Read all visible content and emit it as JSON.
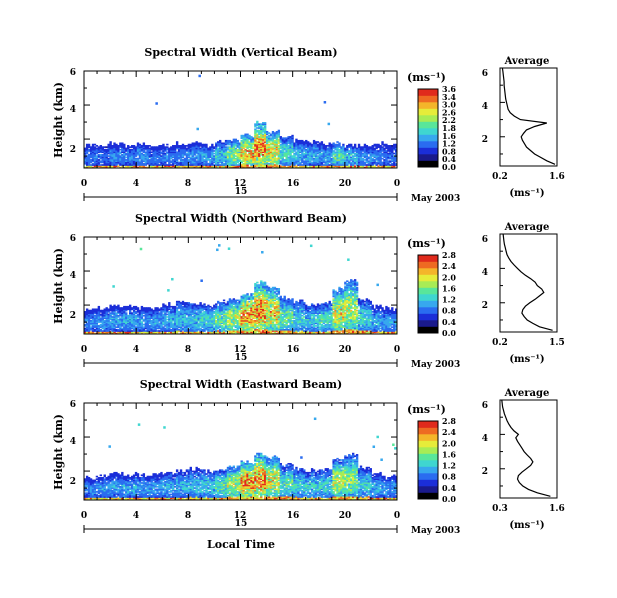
{
  "colors": {
    "colormap": [
      "#000000",
      "#1a1a8c",
      "#1b2ed8",
      "#2a6cf0",
      "#37a8ee",
      "#3fd6d0",
      "#59e69a",
      "#a8ec55",
      "#e6ec3a",
      "#f4b52a",
      "#ee6a22",
      "#e02a1c"
    ]
  },
  "chart_data": [
    {
      "type": "heatmap",
      "title": "Spectral Width (Vertical Beam)",
      "ylabel": "Height (km)",
      "x_ticks": [
        "0",
        "4",
        "8",
        "12",
        "16",
        "20",
        "0"
      ],
      "x_range": [
        0,
        24
      ],
      "y_ticks": [
        "2",
        "4",
        "6"
      ],
      "y_range": [
        0.3,
        6
      ],
      "date_bar_label": "15",
      "date_label": "May 2003",
      "colorbar_unit": "(ms⁻¹)",
      "colorbar_ticks": [
        "3.6",
        "3.4",
        "3.0",
        "2.6",
        "2.2",
        "1.8",
        "1.6",
        "1.2",
        "0.8",
        "0.4",
        "0.0"
      ],
      "colorbar_max": 3.6,
      "boundary_layer_top_km": [
        1.6,
        1.6,
        1.7,
        1.6,
        1.7,
        1.6,
        1.6,
        1.7,
        1.7,
        1.6,
        1.8,
        1.9,
        2.2,
        2.9,
        2.4,
        2.1,
        1.9,
        1.8,
        1.7,
        1.7,
        1.6,
        1.6,
        1.7,
        1.6
      ],
      "peak_width": [
        0.9,
        0.9,
        1.0,
        1.0,
        1.1,
        0.9,
        0.9,
        1.0,
        1.1,
        1.2,
        1.6,
        2.4,
        3.2,
        3.6,
        3.0,
        1.8,
        1.4,
        1.3,
        1.2,
        2.0,
        1.5,
        1.1,
        1.0,
        0.9
      ],
      "average_profile": {
        "title": "Average",
        "xlabel": "(ms⁻¹)",
        "x_ticks": [
          "0.2",
          "1.6"
        ],
        "x_range": [
          0.2,
          1.6
        ],
        "y_range": [
          0.3,
          6
        ],
        "height": [
          0.4,
          0.6,
          0.8,
          1.0,
          1.2,
          1.4,
          1.6,
          1.8,
          2.0,
          2.2,
          2.4,
          2.6,
          2.8,
          3.0,
          3.2,
          3.4,
          3.6,
          3.8,
          4.0,
          4.2,
          4.4,
          4.6,
          4.8,
          5.0,
          5.2,
          5.4,
          5.6,
          5.8,
          6.0
        ],
        "width": [
          1.55,
          1.35,
          1.2,
          1.05,
          0.95,
          0.85,
          0.8,
          0.75,
          0.72,
          0.78,
          0.85,
          1.05,
          1.35,
          0.7,
          0.55,
          0.45,
          0.4,
          0.38,
          0.36,
          0.34,
          0.33,
          0.32,
          0.31,
          0.3,
          0.3,
          0.29,
          0.28,
          0.27,
          0.26
        ]
      }
    },
    {
      "type": "heatmap",
      "title": "Spectral Width (Northward Beam)",
      "ylabel": "Height (km)",
      "x_ticks": [
        "0",
        "4",
        "8",
        "12",
        "16",
        "20",
        "0"
      ],
      "x_range": [
        0,
        24
      ],
      "y_ticks": [
        "2",
        "4",
        "6"
      ],
      "y_range": [
        0.3,
        6
      ],
      "date_bar_label": "15",
      "date_label": "May 2003",
      "colorbar_unit": "(ms⁻¹)",
      "colorbar_ticks": [
        "2.8",
        "2.4",
        "2.0",
        "1.6",
        "1.2",
        "0.8",
        "0.4",
        "0.0"
      ],
      "colorbar_max": 2.8,
      "boundary_layer_top_km": [
        1.7,
        1.8,
        1.9,
        1.9,
        1.8,
        1.8,
        2.0,
        2.1,
        2.1,
        2.0,
        2.2,
        2.3,
        2.6,
        3.3,
        3.1,
        2.4,
        2.2,
        2.0,
        2.1,
        2.9,
        3.4,
        2.3,
        1.9,
        1.8
      ],
      "peak_width": [
        0.8,
        0.9,
        0.9,
        1.0,
        0.9,
        0.9,
        1.0,
        1.1,
        1.2,
        1.3,
        1.6,
        2.0,
        2.8,
        2.8,
        2.4,
        1.6,
        1.3,
        1.2,
        1.4,
        2.2,
        2.0,
        1.3,
        1.0,
        0.9
      ],
      "average_profile": {
        "title": "Average",
        "xlabel": "(ms⁻¹)",
        "x_ticks": [
          "0.2",
          "1.5"
        ],
        "x_range": [
          0.2,
          1.5
        ],
        "y_range": [
          0.3,
          6
        ],
        "height": [
          0.4,
          0.6,
          0.8,
          1.0,
          1.2,
          1.4,
          1.6,
          1.8,
          2.0,
          2.2,
          2.4,
          2.6,
          2.8,
          3.0,
          3.2,
          3.4,
          3.6,
          3.8,
          4.0,
          4.2,
          4.4,
          4.6,
          4.8,
          5.0,
          5.2,
          5.4,
          5.6,
          5.8,
          6.0
        ],
        "width": [
          1.4,
          1.1,
          0.95,
          0.82,
          0.75,
          0.7,
          0.72,
          0.78,
          0.88,
          1.0,
          1.1,
          1.2,
          1.15,
          1.05,
          1.0,
          0.9,
          0.78,
          0.68,
          0.6,
          0.52,
          0.45,
          0.4,
          0.36,
          0.34,
          0.32,
          0.3,
          0.29,
          0.28,
          0.27
        ]
      }
    },
    {
      "type": "heatmap",
      "title": "Spectral Width (Eastward Beam)",
      "ylabel": "Height (km)",
      "xlabel": "Local Time",
      "x_ticks": [
        "0",
        "4",
        "8",
        "12",
        "16",
        "20",
        "0"
      ],
      "x_range": [
        0,
        24
      ],
      "y_ticks": [
        "2",
        "4",
        "6"
      ],
      "y_range": [
        0.3,
        6
      ],
      "date_bar_label": "15",
      "date_label": "May 2003",
      "colorbar_unit": "(ms⁻¹)",
      "colorbar_ticks": [
        "2.8",
        "2.4",
        "2.0",
        "1.6",
        "1.2",
        "0.8",
        "0.4",
        "0.0"
      ],
      "colorbar_max": 2.8,
      "boundary_layer_top_km": [
        1.6,
        1.7,
        1.8,
        1.8,
        1.7,
        1.8,
        1.9,
        2.0,
        2.1,
        2.0,
        2.1,
        2.2,
        2.5,
        3.0,
        2.8,
        2.3,
        2.1,
        2.0,
        2.1,
        2.7,
        2.9,
        2.2,
        1.8,
        1.7
      ],
      "peak_width": [
        0.8,
        0.9,
        0.9,
        1.0,
        0.9,
        0.9,
        1.0,
        1.1,
        1.1,
        1.2,
        1.5,
        2.0,
        2.8,
        2.8,
        2.2,
        1.5,
        1.3,
        1.2,
        1.3,
        2.0,
        1.8,
        1.2,
        1.0,
        0.9
      ],
      "average_profile": {
        "title": "Average",
        "xlabel": "(ms⁻¹)",
        "x_ticks": [
          "0.3",
          "1.6"
        ],
        "x_range": [
          0.3,
          1.6
        ],
        "y_range": [
          0.3,
          6
        ],
        "height": [
          0.4,
          0.6,
          0.8,
          1.0,
          1.2,
          1.4,
          1.6,
          1.8,
          2.0,
          2.2,
          2.4,
          2.6,
          2.8,
          3.0,
          3.2,
          3.4,
          3.6,
          3.8,
          4.0,
          4.2,
          4.4,
          4.6,
          4.8,
          5.0,
          5.2,
          5.4,
          5.6,
          5.8,
          6.0
        ],
        "width": [
          1.45,
          1.15,
          0.95,
          0.82,
          0.74,
          0.7,
          0.72,
          0.8,
          0.9,
          1.0,
          1.05,
          1.0,
          0.92,
          0.85,
          0.8,
          0.75,
          0.7,
          0.66,
          0.72,
          0.62,
          0.55,
          0.5,
          0.46,
          0.43,
          0.4,
          0.38,
          0.36,
          0.35,
          0.34
        ]
      }
    }
  ]
}
